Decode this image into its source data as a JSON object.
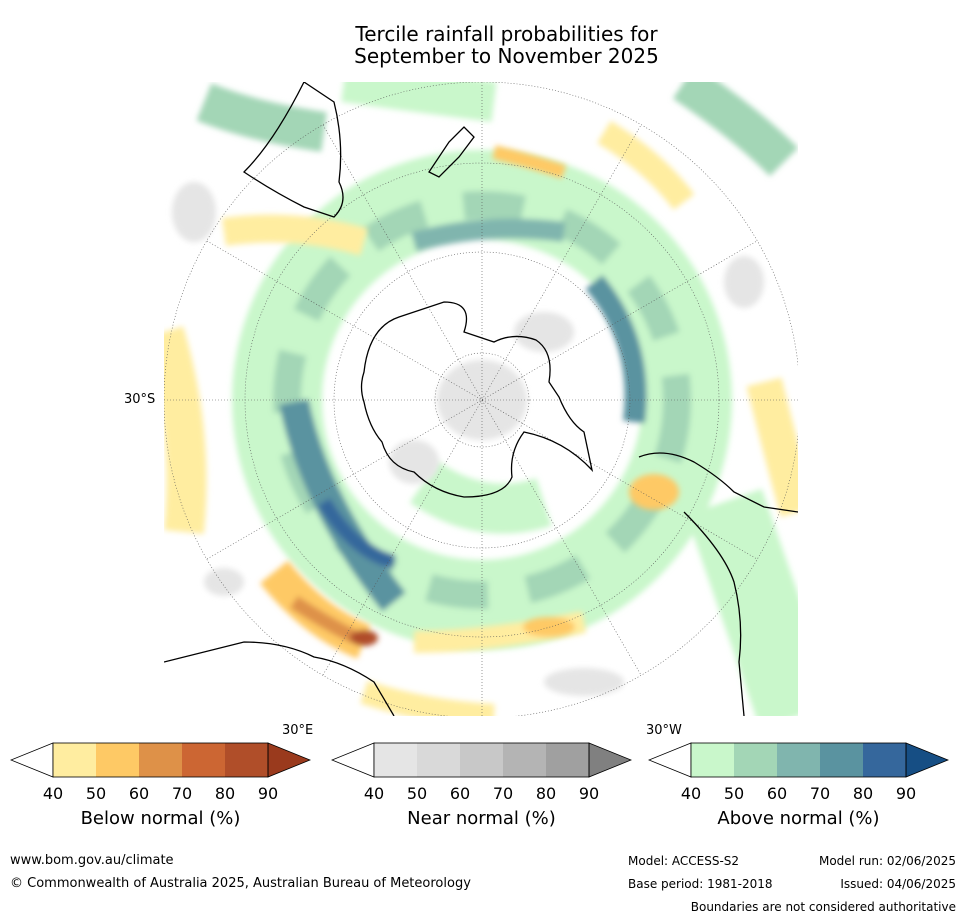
{
  "title_line1": "Tercile rainfall probabilities for",
  "title_line2": "September to November 2025",
  "map": {
    "projection": "south polar stereographic",
    "labels": {
      "lat_30s": "30°S",
      "lon_30e": "30°E",
      "lon_30w": "30°W"
    },
    "colors": {
      "land_outline": "#000000",
      "graticule": "#555555"
    }
  },
  "colorbars": [
    {
      "title": "Below normal (%)",
      "ticks": [
        "40",
        "50",
        "60",
        "70",
        "80",
        "90"
      ],
      "colors": [
        "#ffffff",
        "#ffeda0",
        "#fec965",
        "#de9148",
        "#cc6633",
        "#b04e29",
        "#9a3a1d"
      ]
    },
    {
      "title": "Near normal (%)",
      "ticks": [
        "40",
        "50",
        "60",
        "70",
        "80",
        "90"
      ],
      "colors": [
        "#ffffff",
        "#e5e5e5",
        "#d9d9d9",
        "#c8c8c8",
        "#b4b4b4",
        "#a0a0a0",
        "#808080"
      ]
    },
    {
      "title": "Above normal (%)",
      "ticks": [
        "40",
        "50",
        "60",
        "70",
        "80",
        "90"
      ],
      "colors": [
        "#ffffff",
        "#c9f7cb",
        "#a3d6b6",
        "#80b5ae",
        "#5a93a0",
        "#35679c",
        "#164e84"
      ]
    }
  ],
  "footer": {
    "website": "www.bom.gov.au/climate",
    "copyright": "© Commonwealth of Australia 2025, Australian Bureau of Meteorology",
    "model": "Model: ACCESS-S2",
    "base_period": "Base period: 1981-2018",
    "model_run": "Model run: 02/06/2025",
    "issued": "Issued: 04/06/2025",
    "disclaimer": "Boundaries are not considered authoritative"
  }
}
